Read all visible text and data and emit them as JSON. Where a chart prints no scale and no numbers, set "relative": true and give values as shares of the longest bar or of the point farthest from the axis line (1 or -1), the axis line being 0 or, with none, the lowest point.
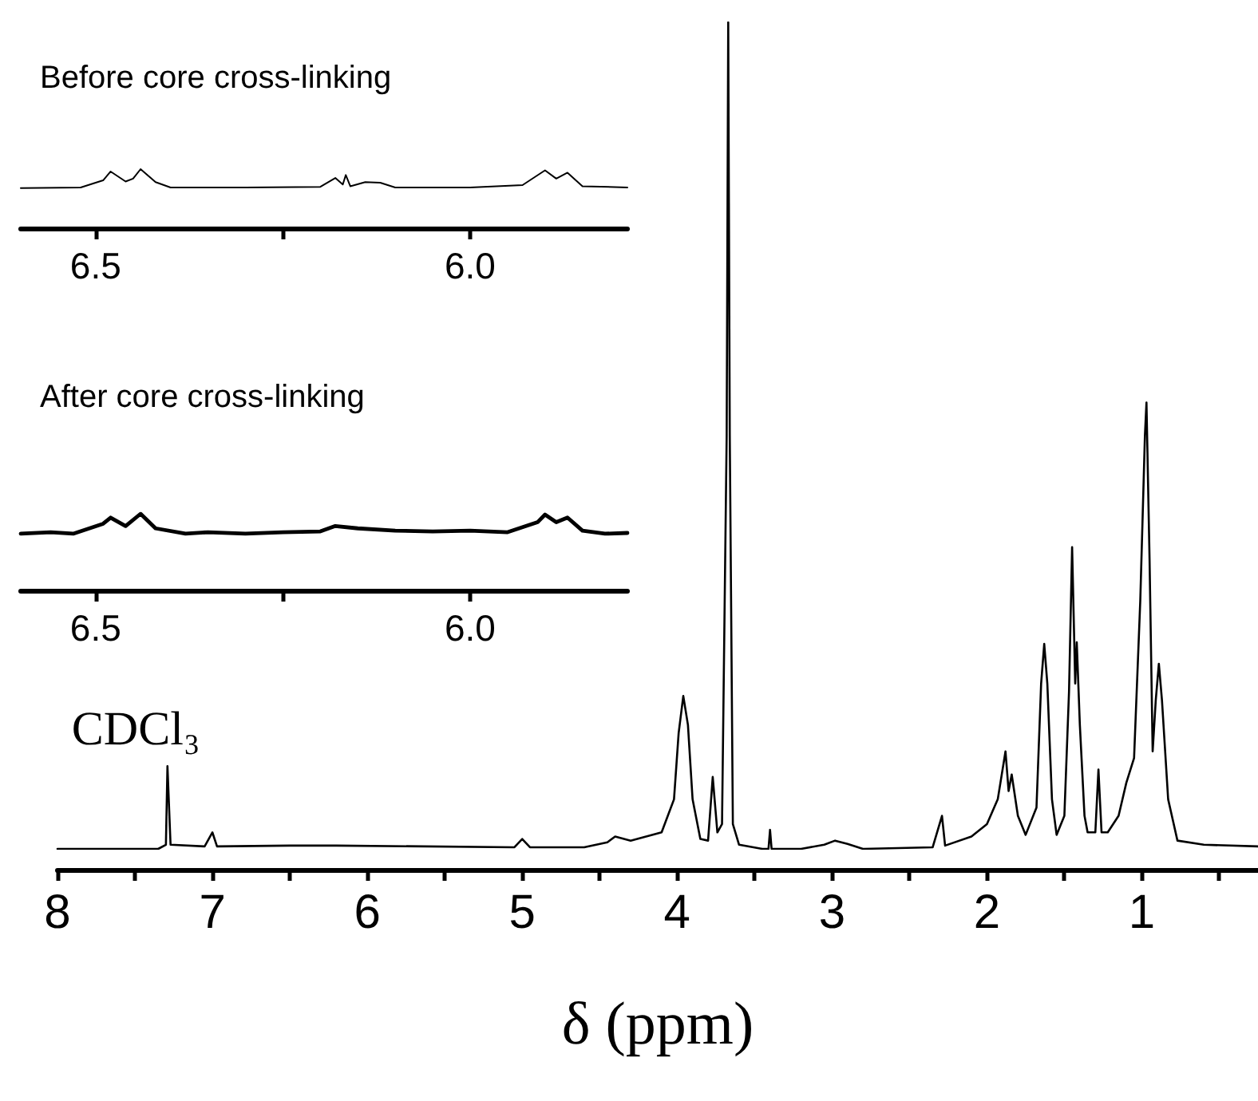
{
  "chart_data": [
    {
      "type": "line",
      "relative": true,
      "xlabel": "δ (ppm)",
      "marker": "none",
      "line_style": "solid",
      "grid": false,
      "xlim": [
        8,
        0.25
      ],
      "xticks": [
        8,
        7,
        6,
        5,
        4,
        3,
        2,
        1
      ],
      "annotations": [
        {
          "text": "CDCl₃",
          "x": 7.29,
          "y": 0.1
        }
      ],
      "series": [
        {
          "color": "#000000",
          "x": [
            8.0,
            7.35,
            7.3,
            7.29,
            7.27,
            7.05,
            7.0,
            6.97,
            6.5,
            6.2,
            5.05,
            5.0,
            4.95,
            4.6,
            4.45,
            4.4,
            4.3,
            4.1,
            4.02,
            3.99,
            3.96,
            3.93,
            3.9,
            3.85,
            3.8,
            3.77,
            3.74,
            3.71,
            3.68,
            3.67,
            3.66,
            3.64,
            3.6,
            3.45,
            3.41,
            3.4,
            3.39,
            3.2,
            3.05,
            2.98,
            2.9,
            2.8,
            2.35,
            2.29,
            2.27,
            2.1,
            2.0,
            1.93,
            1.88,
            1.86,
            1.84,
            1.8,
            1.75,
            1.68,
            1.65,
            1.63,
            1.61,
            1.58,
            1.55,
            1.5,
            1.47,
            1.45,
            1.43,
            1.42,
            1.4,
            1.37,
            1.35,
            1.3,
            1.28,
            1.26,
            1.22,
            1.15,
            1.1,
            1.05,
            1.01,
            0.98,
            0.97,
            0.95,
            0.93,
            0.91,
            0.89,
            0.87,
            0.83,
            0.77,
            0.6,
            0.25
          ],
          "values": [
            0,
            0,
            0.005,
            0.1,
            0.005,
            0.003,
            0.02,
            0.003,
            0.004,
            0.004,
            0.002,
            0.012,
            0.002,
            0.002,
            0.008,
            0.015,
            0.01,
            0.02,
            0.06,
            0.14,
            0.185,
            0.15,
            0.06,
            0.012,
            0.01,
            0.087,
            0.02,
            0.03,
            0.5,
            1.0,
            0.5,
            0.03,
            0.005,
            0,
            0,
            0.023,
            0,
            0,
            0.005,
            0.01,
            0.006,
            0,
            0.002,
            0.04,
            0.004,
            0.015,
            0.03,
            0.06,
            0.118,
            0.07,
            0.09,
            0.04,
            0.017,
            0.05,
            0.2,
            0.248,
            0.2,
            0.06,
            0.017,
            0.04,
            0.19,
            0.365,
            0.2,
            0.25,
            0.15,
            0.04,
            0.02,
            0.02,
            0.096,
            0.02,
            0.02,
            0.04,
            0.08,
            0.11,
            0.3,
            0.5,
            0.54,
            0.35,
            0.118,
            0.18,
            0.224,
            0.18,
            0.06,
            0.01,
            0.005,
            0.003
          ]
        }
      ]
    },
    {
      "type": "line",
      "relative": true,
      "title": "Before core cross-linking",
      "marker": "none",
      "line_style": "solid",
      "grid": false,
      "xlim": [
        6.6,
        5.79
      ],
      "xticks": [
        6.5,
        {
          "value": 6.0,
          "label": "6.0"
        }
      ],
      "series": [
        {
          "color": "#000000",
          "x": [
            6.6,
            6.52,
            6.49,
            6.48,
            6.46,
            6.45,
            6.44,
            6.42,
            6.4,
            6.3,
            6.2,
            6.18,
            6.17,
            6.166,
            6.16,
            6.14,
            6.12,
            6.1,
            6.0,
            5.93,
            5.9,
            5.885,
            5.87,
            5.85,
            5.79
          ],
          "values": [
            0.68,
            0.69,
            0.81,
            0.96,
            0.79,
            0.84,
            1.0,
            0.78,
            0.69,
            0.69,
            0.7,
            0.85,
            0.74,
            0.9,
            0.71,
            0.78,
            0.77,
            0.69,
            0.69,
            0.73,
            0.98,
            0.84,
            0.94,
            0.71,
            0.69
          ]
        }
      ]
    },
    {
      "type": "line",
      "relative": true,
      "title": "After core cross-linking",
      "marker": "none",
      "line_style": "solid",
      "grid": false,
      "xlim": [
        6.6,
        5.79
      ],
      "xticks": [
        6.5,
        {
          "value": 6.0,
          "label": "6.0"
        }
      ],
      "series": [
        {
          "color": "#000000",
          "x": [
            6.6,
            6.56,
            6.53,
            6.49,
            6.48,
            6.46,
            6.44,
            6.42,
            6.38,
            6.35,
            6.3,
            6.25,
            6.2,
            6.18,
            6.15,
            6.1,
            6.05,
            6.0,
            5.95,
            5.91,
            5.9,
            5.885,
            5.87,
            5.85,
            5.82,
            5.79
          ],
          "values": [
            0.74,
            0.76,
            0.74,
            0.87,
            0.95,
            0.84,
            1.0,
            0.81,
            0.74,
            0.76,
            0.74,
            0.76,
            0.77,
            0.84,
            0.81,
            0.78,
            0.77,
            0.78,
            0.76,
            0.89,
            0.99,
            0.89,
            0.95,
            0.78,
            0.74,
            0.75
          ]
        }
      ]
    }
  ]
}
